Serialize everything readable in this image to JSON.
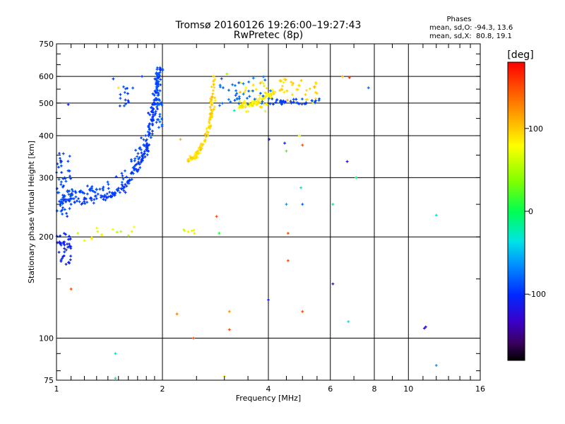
{
  "chart_data": {
    "type": "scatter",
    "title": "Tromsø 20160126 19:26:00–19:27:43",
    "subtitle": "RwPretec (8p)",
    "xlabel": "Frequency [MHz]",
    "ylabel": "Stationary phase Virtual Height [km]",
    "x_scale": "log",
    "y_scale": "log",
    "xlim": [
      1,
      16
    ],
    "ylim": [
      75,
      750
    ],
    "x_ticks": [
      1,
      2,
      4,
      6,
      8,
      10,
      16
    ],
    "x_tick_labels": [
      "1",
      "2",
      "4",
      "6",
      "8",
      "10",
      "16"
    ],
    "y_ticks": [
      75,
      100,
      200,
      300,
      400,
      500,
      600,
      750
    ],
    "y_tick_labels": [
      "75",
      "100",
      "200",
      "300",
      "400",
      "500",
      "600",
      "750"
    ],
    "grid": true,
    "stats_heading": "Phases",
    "stats_line1": "mean, sd,O: -94.3, 13.6",
    "stats_line2": "mean, sd,X:  80.8, 19.1",
    "colorbar": {
      "label": "[deg]",
      "range": [
        -180,
        180
      ],
      "ticks": [
        -100,
        0,
        100
      ],
      "tick_labels": [
        "-100",
        "0",
        "100"
      ]
    },
    "clusters": [
      {
        "kind": "line",
        "path": [
          [
            1.0,
            255
          ],
          [
            1.2,
            256
          ],
          [
            1.4,
            265
          ],
          [
            1.55,
            280
          ],
          [
            1.7,
            320
          ],
          [
            1.8,
            370
          ],
          [
            1.87,
            450
          ],
          [
            1.93,
            550
          ],
          [
            1.97,
            640
          ]
        ],
        "n": 230,
        "jx": 0.05,
        "jy": 0.05,
        "phase": -95,
        "ps": 10
      },
      {
        "kind": "line",
        "path": [
          [
            1.02,
            268
          ],
          [
            1.15,
            270
          ],
          [
            1.3,
            278
          ],
          [
            1.5,
            295
          ],
          [
            1.65,
            335
          ],
          [
            1.77,
            390
          ]
        ],
        "n": 60,
        "jx": 0.06,
        "jy": 0.06,
        "phase": -90,
        "ps": 12
      },
      {
        "kind": "box",
        "x": [
          1.0,
          1.1
        ],
        "y": [
          230,
          360
        ],
        "n": 50,
        "phase": -92,
        "ps": 15
      },
      {
        "kind": "box",
        "x": [
          1.0,
          1.1
        ],
        "y": [
          165,
          205
        ],
        "n": 40,
        "phase": -105,
        "ps": 12
      },
      {
        "kind": "box",
        "x": [
          1.92,
          2.0
        ],
        "y": [
          420,
          650
        ],
        "n": 40,
        "phase": -85,
        "ps": 10
      },
      {
        "kind": "box",
        "x": [
          1.5,
          1.65
        ],
        "y": [
          490,
          560
        ],
        "n": 14,
        "phase": -90,
        "ps": 15
      },
      {
        "kind": "line",
        "path": [
          [
            2.35,
            335
          ],
          [
            2.5,
            350
          ],
          [
            2.65,
            390
          ],
          [
            2.75,
            450
          ],
          [
            2.78,
            520
          ],
          [
            2.8,
            600
          ]
        ],
        "n": 110,
        "jx": 0.03,
        "jy": 0.04,
        "phase": 95,
        "ps": 20
      },
      {
        "kind": "line",
        "path": [
          [
            3.3,
            490
          ],
          [
            3.6,
            500
          ],
          [
            3.9,
            520
          ],
          [
            4.2,
            540
          ]
        ],
        "n": 70,
        "jx": 0.04,
        "jy": 0.05,
        "phase": 85,
        "ps": 20
      },
      {
        "kind": "box",
        "x": [
          3.3,
          4.0
        ],
        "y": [
          470,
          580
        ],
        "n": 30,
        "phase": 90,
        "ps": 25
      },
      {
        "kind": "box",
        "x": [
          4.3,
          5.5
        ],
        "y": [
          500,
          590
        ],
        "n": 40,
        "phase": 95,
        "ps": 20
      },
      {
        "kind": "box",
        "x": [
          2.9,
          4.1
        ],
        "y": [
          490,
          600
        ],
        "n": 40,
        "phase": -80,
        "ps": 15
      },
      {
        "kind": "box",
        "x": [
          4.0,
          5.6
        ],
        "y": [
          495,
          515
        ],
        "n": 40,
        "phase": -90,
        "ps": 12
      },
      {
        "kind": "box",
        "x": [
          1.25,
          1.7
        ],
        "y": [
          195,
          215
        ],
        "n": 12,
        "phase": 70,
        "ps": 30
      },
      {
        "kind": "box",
        "x": [
          2.3,
          2.5
        ],
        "y": [
          205,
          210
        ],
        "n": 5,
        "phase": 75,
        "ps": 25
      }
    ],
    "points": [
      {
        "x": 1.45,
        "y": 590,
        "phase": -100
      },
      {
        "x": 1.08,
        "y": 495,
        "phase": -100
      },
      {
        "x": 1.5,
        "y": 555,
        "phase": 90
      },
      {
        "x": 1.75,
        "y": 600,
        "phase": -90
      },
      {
        "x": 2.25,
        "y": 390,
        "phase": 110
      },
      {
        "x": 2.85,
        "y": 230,
        "phase": 150
      },
      {
        "x": 3.05,
        "y": 610,
        "phase": 40
      },
      {
        "x": 3.2,
        "y": 475,
        "phase": -20
      },
      {
        "x": 2.9,
        "y": 205,
        "phase": 10
      },
      {
        "x": 4.02,
        "y": 390,
        "phase": -110
      },
      {
        "x": 4.45,
        "y": 380,
        "phase": -100
      },
      {
        "x": 4.5,
        "y": 360,
        "phase": 20
      },
      {
        "x": 4.9,
        "y": 400,
        "phase": 60
      },
      {
        "x": 5.0,
        "y": 375,
        "phase": 150
      },
      {
        "x": 4.95,
        "y": 280,
        "phase": -30
      },
      {
        "x": 4.5,
        "y": 250,
        "phase": -60
      },
      {
        "x": 5.0,
        "y": 250,
        "phase": -80
      },
      {
        "x": 4.55,
        "y": 205,
        "phase": 150
      },
      {
        "x": 4.55,
        "y": 170,
        "phase": 150
      },
      {
        "x": 4.0,
        "y": 130,
        "phase": -110
      },
      {
        "x": 5.0,
        "y": 120,
        "phase": 150
      },
      {
        "x": 6.1,
        "y": 145,
        "phase": -120
      },
      {
        "x": 6.1,
        "y": 250,
        "phase": -20
      },
      {
        "x": 6.7,
        "y": 335,
        "phase": -120
      },
      {
        "x": 7.1,
        "y": 300,
        "phase": -10
      },
      {
        "x": 6.5,
        "y": 600,
        "phase": 110
      },
      {
        "x": 6.8,
        "y": 595,
        "phase": 160
      },
      {
        "x": 7.7,
        "y": 555,
        "phase": -80
      },
      {
        "x": 6.75,
        "y": 112,
        "phase": -30
      },
      {
        "x": 11.2,
        "y": 108,
        "phase": -120
      },
      {
        "x": 11.1,
        "y": 107,
        "phase": -120
      },
      {
        "x": 12.0,
        "y": 232,
        "phase": -30
      },
      {
        "x": 12.0,
        "y": 83,
        "phase": -60
      },
      {
        "x": 1.1,
        "y": 140,
        "phase": 150
      },
      {
        "x": 1.47,
        "y": 90,
        "phase": -30
      },
      {
        "x": 1.47,
        "y": 76,
        "phase": -10
      },
      {
        "x": 2.45,
        "y": 100,
        "phase": 150
      },
      {
        "x": 2.2,
        "y": 118,
        "phase": 130
      },
      {
        "x": 3.1,
        "y": 120,
        "phase": 120
      },
      {
        "x": 3.1,
        "y": 106,
        "phase": 150
      },
      {
        "x": 3.0,
        "y": 77,
        "phase": 80
      },
      {
        "x": 2.3,
        "y": 210,
        "phase": 60
      },
      {
        "x": 1.2,
        "y": 195,
        "phase": 70
      },
      {
        "x": 1.15,
        "y": 205,
        "phase": 60
      }
    ]
  }
}
